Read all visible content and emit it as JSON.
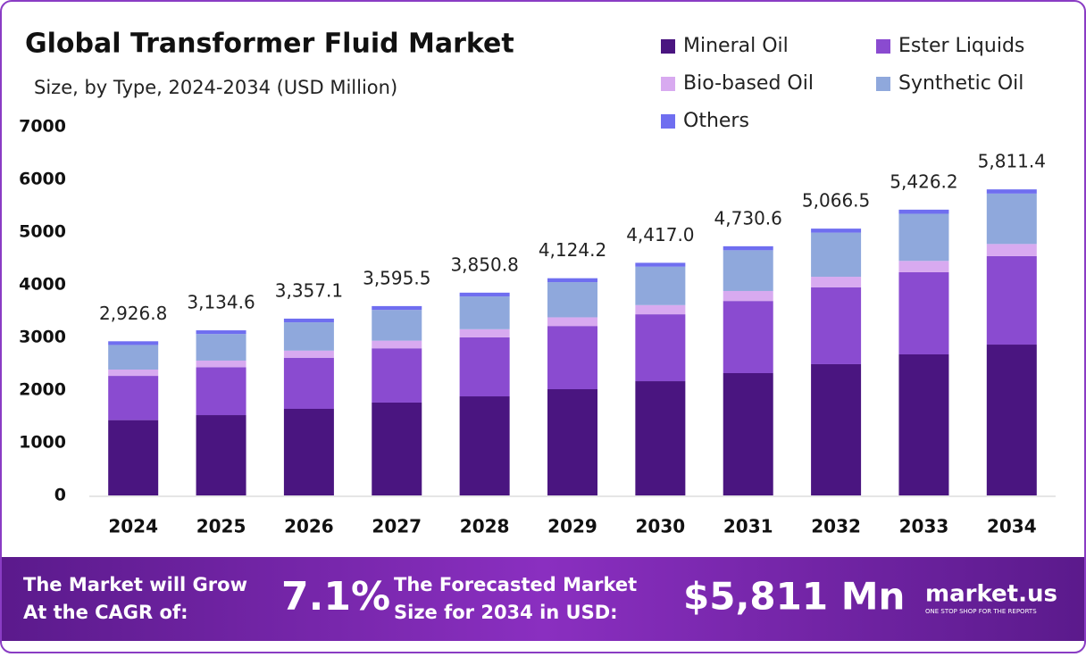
{
  "chart_data": {
    "type": "stacked_bar",
    "title": "Global Transformer Fluid Market",
    "subtitle": "Size, by Type, 2024-2034 (USD Million)",
    "categories": [
      "2024",
      "2025",
      "2026",
      "2027",
      "2028",
      "2029",
      "2030",
      "2031",
      "2032",
      "2033",
      "2034"
    ],
    "series": [
      {
        "name": "Mineral Oil",
        "color": "#4a1580",
        "values": [
          1430,
          1525,
          1644,
          1763,
          1881,
          2017,
          2169,
          2322,
          2492,
          2678,
          2864
        ]
      },
      {
        "name": "Ester Liquids",
        "color": "#8a4bd0",
        "values": [
          840,
          910,
          970,
          1030,
          1120,
          1200,
          1270,
          1370,
          1460,
          1560,
          1680
        ]
      },
      {
        "name": "Bio-based Oil",
        "color": "#d8aaf0",
        "values": [
          120,
          125,
          135,
          145,
          155,
          165,
          175,
          190,
          200,
          215,
          230
        ]
      },
      {
        "name": "Synthetic Oil",
        "color": "#8fa8dc",
        "values": [
          467,
          505,
          538,
          585,
          622,
          668,
          729,
          773,
          838,
          895,
          957
        ]
      },
      {
        "name": "Others",
        "color": "#6f6ef0",
        "values": [
          70,
          70,
          70,
          72,
          72,
          74,
          74,
          76,
          76,
          78,
          80
        ]
      }
    ],
    "totals": [
      2926.8,
      3134.6,
      3357.1,
      3595.5,
      3850.8,
      4124.2,
      4417.0,
      4730.6,
      5066.5,
      5426.2,
      5811.4
    ],
    "total_labels": [
      "2,926.8",
      "3,134.6",
      "3,357.1",
      "3,595.5",
      "3,850.8",
      "4,124.2",
      "4,417.0",
      "4,730.6",
      "5,066.5",
      "5,426.2",
      "5,811.4"
    ],
    "ylim": [
      0,
      7000
    ],
    "yticks": [
      0,
      1000,
      2000,
      3000,
      4000,
      5000,
      6000,
      7000
    ],
    "grid": false
  },
  "footer": {
    "cagr_text": [
      "The Market will Grow",
      "At the CAGR of:"
    ],
    "cagr_value": "7.1%",
    "forecast_text": [
      "The Forecasted Market",
      "Size for 2034 in USD:"
    ],
    "forecast_value": "$5,811 Mn",
    "brand": "market.us",
    "tagline": "ONE STOP SHOP FOR THE REPORTS"
  }
}
